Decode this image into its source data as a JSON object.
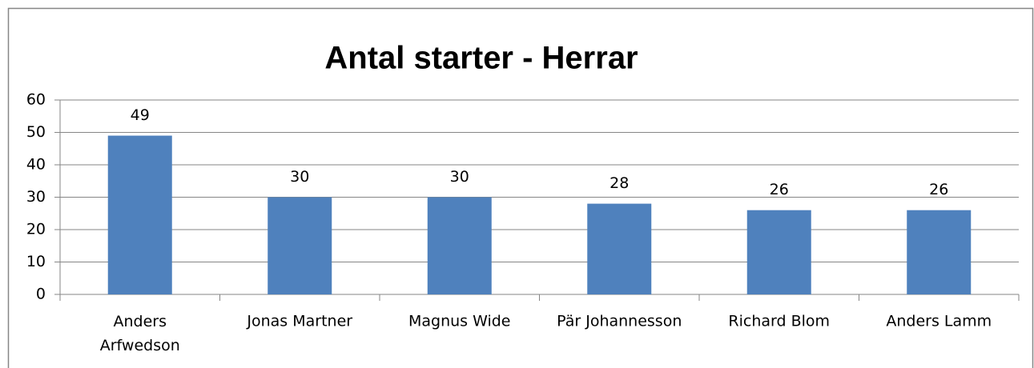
{
  "chart_data": {
    "type": "bar",
    "title": "Antal starter - Herrar",
    "categories": [
      "Anders Arfwedson",
      "Jonas Martner",
      "Magnus Wide",
      "Pär Johannesson",
      "Richard Blom",
      "Anders Lamm"
    ],
    "values": [
      49,
      30,
      30,
      28,
      26,
      26
    ],
    "color": "#4f81bd",
    "ylim": [
      0,
      60
    ],
    "yticks": [
      0,
      10,
      20,
      30,
      40,
      50,
      60
    ],
    "grid": true
  }
}
